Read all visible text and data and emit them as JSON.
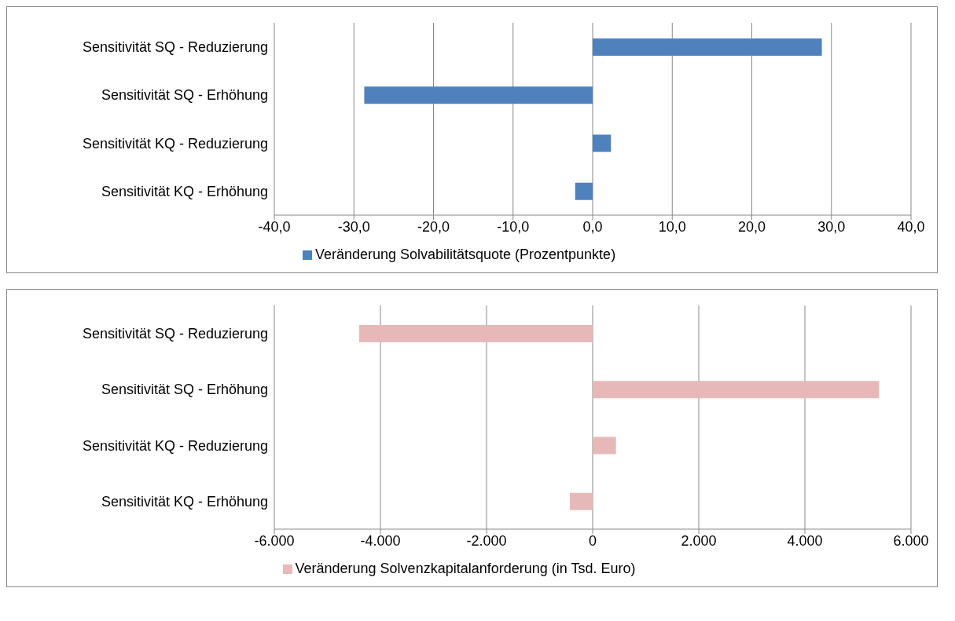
{
  "chart_data": [
    {
      "type": "bar",
      "orientation": "horizontal",
      "categories": [
        "Sensitivität SQ - Reduzierung",
        "Sensitivität SQ - Erhöhung",
        "Sensitivität KQ - Reduzierung",
        "Sensitivität KQ - Erhöhung"
      ],
      "series": [
        {
          "name": "Veränderung Solvabilitätsquote (Prozentpunkte)",
          "color": "#4f81bd",
          "values": [
            28.8,
            -28.7,
            2.3,
            -2.2
          ]
        }
      ],
      "xlim": [
        -40,
        40
      ],
      "xticks": [
        {
          "value": -40,
          "label": "-40,0"
        },
        {
          "value": -30,
          "label": "-30,0"
        },
        {
          "value": -20,
          "label": "-20,0"
        },
        {
          "value": -10,
          "label": "-10,0"
        },
        {
          "value": 0,
          "label": "0,0"
        },
        {
          "value": 10,
          "label": "10,0"
        },
        {
          "value": 20,
          "label": "20,0"
        },
        {
          "value": 30,
          "label": "30,0"
        },
        {
          "value": 40,
          "label": "40,0"
        }
      ],
      "grid": "x",
      "legend": "bottom"
    },
    {
      "type": "bar",
      "orientation": "horizontal",
      "categories": [
        "Sensitivität SQ - Reduzierung",
        "Sensitivität SQ - Erhöhung",
        "Sensitivität KQ - Reduzierung",
        "Sensitivität KQ - Erhöhung"
      ],
      "series": [
        {
          "name": "Veränderung Solvenzkapitalanforderung (in Tsd. Euro)",
          "color": "#e6b9b8",
          "values": [
            -4400,
            5400,
            440,
            -430
          ]
        }
      ],
      "xlim": [
        -6000,
        6000
      ],
      "xticks": [
        {
          "value": -6000,
          "label": "-6.000"
        },
        {
          "value": -4000,
          "label": "-4.000"
        },
        {
          "value": -2000,
          "label": "-2.000"
        },
        0,
        {
          "value": 2000,
          "label": "2.000"
        },
        {
          "value": 4000,
          "label": "4.000"
        },
        {
          "value": 6000,
          "label": "6.000"
        }
      ],
      "grid": "x",
      "legend": "bottom"
    }
  ]
}
